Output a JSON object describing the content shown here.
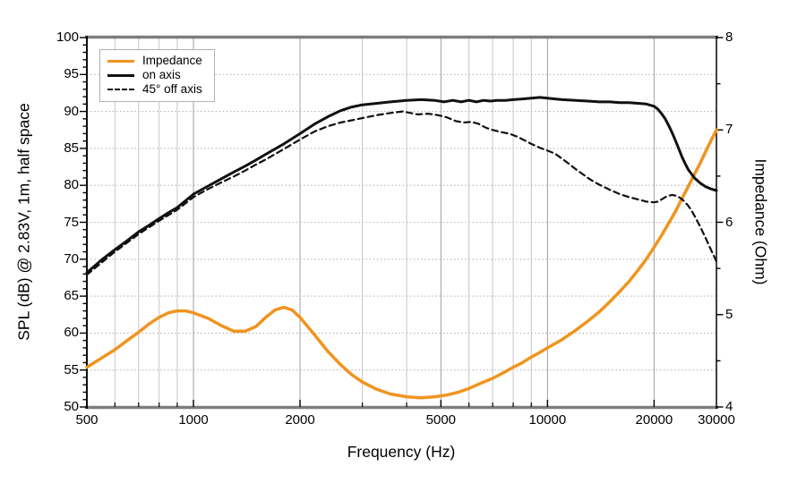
{
  "colors": {
    "impedance_orange": "#F0941E",
    "curve_black": "#111111",
    "frame_gray": "#7d7d7d",
    "grid_major": "#a8a8a8",
    "grid_minor": "#c6c6c6",
    "grid_horizontal": "#b5b5b5",
    "legend_border": "#b0b0b0"
  },
  "chart_data": {
    "type": "line",
    "title": "",
    "x_axis": {
      "label": "Frequency (Hz)",
      "scale": "log",
      "min": 500,
      "max": 30000,
      "major_ticks": [
        500,
        1000,
        2000,
        5000,
        10000,
        20000,
        30000
      ],
      "tick_labels": [
        "500",
        "1000",
        "2000",
        "5000",
        "10000",
        "20000",
        "30000"
      ],
      "minor_gridlines": [
        600,
        700,
        800,
        900,
        3000,
        4000,
        6000,
        7000,
        8000,
        9000
      ],
      "major_gridlines": [
        1000,
        2000,
        5000,
        10000,
        20000
      ]
    },
    "y_left_axis": {
      "label": "SPL (dB) @ 2.83V, 1m, half space",
      "min": 50,
      "max": 100,
      "ticks": [
        50,
        55,
        60,
        65,
        70,
        75,
        80,
        85,
        90,
        95,
        100
      ],
      "tick_labels": [
        "50",
        "55",
        "60",
        "65",
        "70",
        "75",
        "80",
        "85",
        "90",
        "95",
        "100"
      ],
      "minor_tick_step": 1,
      "gridlines": [
        55,
        60,
        65,
        70,
        75,
        80,
        85,
        90,
        95
      ]
    },
    "y_right_axis": {
      "label": "Impedance (Ohm)",
      "min": 4,
      "max": 8,
      "ticks": [
        4,
        5,
        6,
        7,
        8
      ],
      "tick_labels": [
        "4",
        "5",
        "6",
        "7",
        "8"
      ],
      "minor_ticks": [
        4.5,
        5.5,
        6.5,
        7.5
      ]
    },
    "legend": {
      "position": "top-left",
      "items": [
        {
          "label": "Impedance",
          "color": "#F0941E",
          "style": "solid"
        },
        {
          "label": "on axis",
          "color": "#111111",
          "style": "solid"
        },
        {
          "label": "45° off axis",
          "color": "#111111",
          "style": "dashed"
        }
      ]
    },
    "series": [
      {
        "name": "Impedance",
        "axis": "right",
        "unit": "Ohm",
        "color": "#F0941E",
        "style": "solid",
        "width": 3.5,
        "points": [
          [
            500,
            4.43
          ],
          [
            550,
            4.53
          ],
          [
            600,
            4.62
          ],
          [
            650,
            4.72
          ],
          [
            700,
            4.81
          ],
          [
            750,
            4.9
          ],
          [
            800,
            4.97
          ],
          [
            850,
            5.02
          ],
          [
            900,
            5.04
          ],
          [
            950,
            5.04
          ],
          [
            1000,
            5.02
          ],
          [
            1100,
            4.96
          ],
          [
            1200,
            4.88
          ],
          [
            1300,
            4.82
          ],
          [
            1400,
            4.82
          ],
          [
            1500,
            4.87
          ],
          [
            1600,
            4.97
          ],
          [
            1700,
            5.05
          ],
          [
            1800,
            5.08
          ],
          [
            1900,
            5.05
          ],
          [
            2000,
            4.97
          ],
          [
            2200,
            4.78
          ],
          [
            2400,
            4.6
          ],
          [
            2600,
            4.46
          ],
          [
            2800,
            4.35
          ],
          [
            3000,
            4.27
          ],
          [
            3300,
            4.19
          ],
          [
            3600,
            4.14
          ],
          [
            4000,
            4.11
          ],
          [
            4400,
            4.1
          ],
          [
            4800,
            4.11
          ],
          [
            5200,
            4.13
          ],
          [
            5600,
            4.16
          ],
          [
            6000,
            4.2
          ],
          [
            6500,
            4.26
          ],
          [
            7000,
            4.31
          ],
          [
            7500,
            4.37
          ],
          [
            8000,
            4.43
          ],
          [
            8500,
            4.48
          ],
          [
            9000,
            4.54
          ],
          [
            9500,
            4.59
          ],
          [
            10000,
            4.64
          ],
          [
            11000,
            4.73
          ],
          [
            12000,
            4.83
          ],
          [
            13000,
            4.93
          ],
          [
            14000,
            5.03
          ],
          [
            15000,
            5.14
          ],
          [
            16000,
            5.25
          ],
          [
            17000,
            5.36
          ],
          [
            18000,
            5.48
          ],
          [
            19000,
            5.6
          ],
          [
            20000,
            5.73
          ],
          [
            21000,
            5.86
          ],
          [
            22000,
            5.99
          ],
          [
            23000,
            6.12
          ],
          [
            24000,
            6.26
          ],
          [
            25000,
            6.39
          ],
          [
            26000,
            6.52
          ],
          [
            27000,
            6.64
          ],
          [
            28000,
            6.77
          ],
          [
            29000,
            6.89
          ],
          [
            30000,
            7.0
          ]
        ]
      },
      {
        "name": "on axis",
        "axis": "left",
        "unit": "dB",
        "color": "#111111",
        "style": "solid",
        "width": 3,
        "points": [
          [
            500,
            68.2
          ],
          [
            550,
            69.9
          ],
          [
            600,
            71.3
          ],
          [
            650,
            72.5
          ],
          [
            700,
            73.7
          ],
          [
            750,
            74.6
          ],
          [
            800,
            75.5
          ],
          [
            850,
            76.3
          ],
          [
            900,
            77.0
          ],
          [
            1000,
            78.8
          ],
          [
            1100,
            79.9
          ],
          [
            1200,
            80.9
          ],
          [
            1300,
            81.8
          ],
          [
            1400,
            82.6
          ],
          [
            1500,
            83.4
          ],
          [
            1600,
            84.2
          ],
          [
            1800,
            85.6
          ],
          [
            2000,
            87.0
          ],
          [
            2200,
            88.3
          ],
          [
            2400,
            89.3
          ],
          [
            2600,
            90.1
          ],
          [
            2800,
            90.6
          ],
          [
            3000,
            90.9
          ],
          [
            3300,
            91.1
          ],
          [
            3600,
            91.3
          ],
          [
            4000,
            91.5
          ],
          [
            4400,
            91.6
          ],
          [
            4800,
            91.5
          ],
          [
            5100,
            91.3
          ],
          [
            5400,
            91.5
          ],
          [
            5700,
            91.3
          ],
          [
            6000,
            91.5
          ],
          [
            6300,
            91.3
          ],
          [
            6600,
            91.5
          ],
          [
            6900,
            91.4
          ],
          [
            7200,
            91.5
          ],
          [
            7600,
            91.5
          ],
          [
            8000,
            91.6
          ],
          [
            8500,
            91.7
          ],
          [
            9000,
            91.8
          ],
          [
            9500,
            91.9
          ],
          [
            10000,
            91.8
          ],
          [
            10500,
            91.7
          ],
          [
            11000,
            91.6
          ],
          [
            12000,
            91.5
          ],
          [
            13000,
            91.4
          ],
          [
            14000,
            91.3
          ],
          [
            15000,
            91.3
          ],
          [
            16000,
            91.2
          ],
          [
            17000,
            91.2
          ],
          [
            18000,
            91.1
          ],
          [
            19000,
            91.0
          ],
          [
            20000,
            90.7
          ],
          [
            20500,
            90.3
          ],
          [
            21000,
            89.7
          ],
          [
            21500,
            89.0
          ],
          [
            22000,
            88.1
          ],
          [
            22500,
            87.1
          ],
          [
            23000,
            86.0
          ],
          [
            23500,
            84.9
          ],
          [
            24000,
            83.8
          ],
          [
            24500,
            82.9
          ],
          [
            25000,
            82.1
          ],
          [
            26000,
            81.0
          ],
          [
            27000,
            80.3
          ],
          [
            28000,
            79.8
          ],
          [
            29000,
            79.5
          ],
          [
            30000,
            79.3
          ]
        ]
      },
      {
        "name": "45° off axis",
        "axis": "left",
        "unit": "dB",
        "color": "#111111",
        "style": "dashed",
        "width": 2.2,
        "points": [
          [
            500,
            67.9
          ],
          [
            600,
            71.0
          ],
          [
            700,
            73.4
          ],
          [
            800,
            75.2
          ],
          [
            900,
            76.7
          ],
          [
            1000,
            78.4
          ],
          [
            1100,
            79.5
          ],
          [
            1200,
            80.4
          ],
          [
            1300,
            81.2
          ],
          [
            1400,
            82.0
          ],
          [
            1500,
            82.8
          ],
          [
            1600,
            83.5
          ],
          [
            1800,
            84.9
          ],
          [
            2000,
            86.2
          ],
          [
            2200,
            87.3
          ],
          [
            2400,
            88.0
          ],
          [
            2600,
            88.5
          ],
          [
            2800,
            88.8
          ],
          [
            3000,
            89.1
          ],
          [
            3300,
            89.5
          ],
          [
            3600,
            89.8
          ],
          [
            3900,
            90.0
          ],
          [
            4100,
            89.8
          ],
          [
            4300,
            89.6
          ],
          [
            4600,
            89.7
          ],
          [
            4900,
            89.5
          ],
          [
            5200,
            89.2
          ],
          [
            5500,
            88.7
          ],
          [
            5800,
            88.5
          ],
          [
            6100,
            88.6
          ],
          [
            6400,
            88.3
          ],
          [
            6700,
            87.8
          ],
          [
            7000,
            87.5
          ],
          [
            7400,
            87.2
          ],
          [
            7800,
            87.0
          ],
          [
            8200,
            86.6
          ],
          [
            8600,
            86.1
          ],
          [
            9000,
            85.6
          ],
          [
            9500,
            85.1
          ],
          [
            10000,
            84.7
          ],
          [
            10500,
            84.3
          ],
          [
            11000,
            83.6
          ],
          [
            11500,
            82.9
          ],
          [
            12000,
            82.2
          ],
          [
            12500,
            81.6
          ],
          [
            13000,
            81.0
          ],
          [
            13500,
            80.5
          ],
          [
            14000,
            80.1
          ],
          [
            15000,
            79.4
          ],
          [
            16000,
            78.8
          ],
          [
            17000,
            78.4
          ],
          [
            18000,
            78.1
          ],
          [
            19000,
            77.8
          ],
          [
            20000,
            77.7
          ],
          [
            20500,
            77.8
          ],
          [
            21000,
            78.1
          ],
          [
            21500,
            78.4
          ],
          [
            22000,
            78.6
          ],
          [
            22500,
            78.7
          ],
          [
            23000,
            78.6
          ],
          [
            23500,
            78.4
          ],
          [
            24000,
            78.1
          ],
          [
            24500,
            77.7
          ],
          [
            25000,
            77.2
          ],
          [
            25500,
            76.6
          ],
          [
            26000,
            75.9
          ],
          [
            27000,
            74.4
          ],
          [
            28000,
            72.8
          ],
          [
            29000,
            71.2
          ],
          [
            30000,
            69.7
          ]
        ]
      }
    ]
  }
}
